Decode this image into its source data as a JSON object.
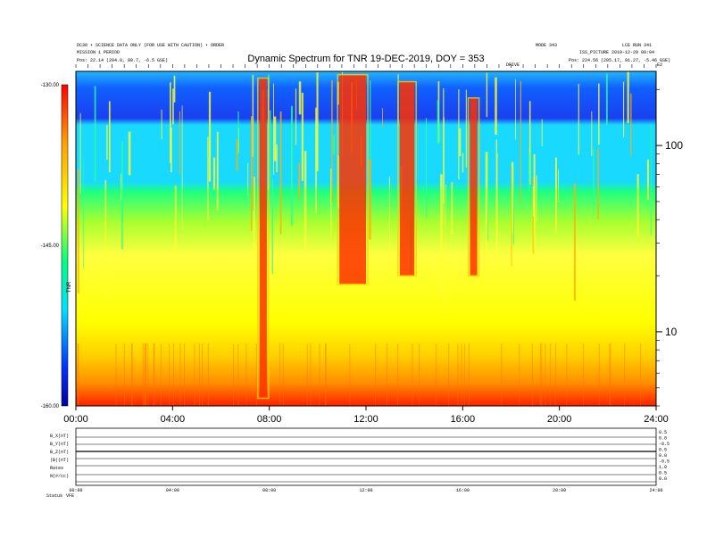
{
  "header": {
    "line1_left": "DC30 • SCIENCE DATA ONLY (FOR USE WITH CAUTION) • ORDER",
    "line2_left": "MISSION 1 PERIOD",
    "pos_left": "Pos:  22.14 (204.0, 80.7, -6.5 GSE)",
    "line1_right_a": "MODE 343",
    "line1_right_b": "LCE RUN 341",
    "line2_right": "ISS_PICTURE 2019-12-20 00:04",
    "pos_right": "Pos:  224.56 (205.17, 91.27, -5.46 GSE)",
    "mark_small_a": "DRIVE",
    "mark_small_b": "E2"
  },
  "chart_data": {
    "type": "heatmap",
    "title": "Dynamic Spectrum for TNR 19-DEC-2019, DOY = 353",
    "x_ticks": [
      "00:00",
      "04:00",
      "08:00",
      "12:00",
      "16:00",
      "20:00",
      "24:00"
    ],
    "x_range_hours": [
      0,
      24
    ],
    "y_ticks": [
      "100",
      "10"
    ],
    "y_tick_values": [
      100,
      10
    ],
    "y_range_khz": [
      4,
      250
    ],
    "y_scale": "log",
    "colorbar": {
      "ticks": [
        "-130.00",
        "-145.00",
        "-160.00"
      ],
      "tick_values": [
        -130,
        -145,
        -160
      ],
      "range": [
        -160,
        -130
      ],
      "label": "TNR",
      "colors": [
        "#0000a0",
        "#0030ff",
        "#00e0ff",
        "#00ff80",
        "#ffff00",
        "#ffa000",
        "#ff0000"
      ]
    },
    "bursts": [
      {
        "start_hour": 7.6,
        "end_hour": 7.9,
        "low_khz": 4.4,
        "high_khz": 230
      },
      {
        "start_hour": 10.9,
        "end_hour": 12.0,
        "low_khz": 18,
        "high_khz": 240
      },
      {
        "start_hour": 13.4,
        "end_hour": 14.0,
        "low_khz": 20,
        "high_khz": 220
      },
      {
        "start_hour": 16.3,
        "end_hour": 16.6,
        "low_khz": 20,
        "high_khz": 180
      }
    ],
    "grid": false,
    "legend": "none"
  },
  "subpanels": {
    "labels": [
      "B_X(nT)",
      "B_Y(nT)",
      "B_Z(nT)",
      "|B|(nT)",
      "Rates",
      "N(#/cc)"
    ],
    "right_values": [
      "0.5",
      "0.0",
      "-0.5",
      "0.5",
      "0.0",
      "-0.5",
      "1.0",
      "0.5",
      "0.0"
    ],
    "x_ticks": [
      "00:00",
      "04:00",
      "08:00",
      "12:00",
      "16:00",
      "20:00",
      "24:00"
    ],
    "footer_left": "Status",
    "footer_right": "VFE"
  }
}
